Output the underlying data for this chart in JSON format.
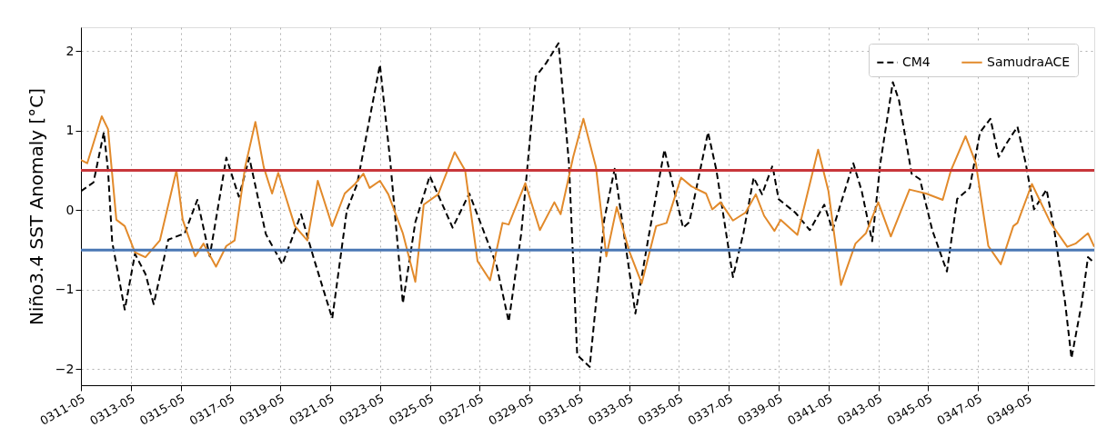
{
  "chart_data": {
    "type": "line",
    "ylabel": "Niño3.4 SST Anomaly [°C]",
    "xlim": [
      "0311-05",
      "0352-01"
    ],
    "ylim": [
      -2.2,
      2.3
    ],
    "xticks": [
      "0311-05",
      "0313-05",
      "0315-05",
      "0317-05",
      "0319-05",
      "0321-05",
      "0323-05",
      "0325-05",
      "0327-05",
      "0329-05",
      "0331-05",
      "0333-05",
      "0335-05",
      "0337-05",
      "0339-05",
      "0341-05",
      "0343-05",
      "0345-05",
      "0347-05",
      "0349-05"
    ],
    "yticks": [
      -2,
      -1,
      0,
      1,
      2
    ],
    "grid": true,
    "legend": "top right",
    "series": [
      {
        "name": "CM4",
        "color": "#000000",
        "line_style": "dashed",
        "x": [
          "0311-05",
          "0311-11",
          "0312-04",
          "0312-06",
          "0312-08",
          "0313-02",
          "0313-07",
          "0313-12",
          "0314-04",
          "0314-11",
          "0315-07",
          "0316-01",
          "0316-07",
          "0317-03",
          "0317-09",
          "0318-02",
          "0318-10",
          "0319-06",
          "0320-03",
          "0320-09",
          "0321-06",
          "0322-01",
          "0322-06",
          "0323-05",
          "0323-10",
          "0324-04",
          "0324-10",
          "0325-05",
          "0326-04",
          "0326-12",
          "0328-01",
          "0328-07",
          "0329-01",
          "0329-08",
          "0330-01",
          "0330-07",
          "0330-12",
          "0331-04",
          "0331-10",
          "0332-05",
          "0332-10",
          "0333-08",
          "0334-02",
          "0334-10",
          "0335-07",
          "0335-10",
          "0336-07",
          "0336-11",
          "0337-07",
          "0337-12",
          "0338-05",
          "0338-09",
          "0339-02",
          "0339-05",
          "0340-01",
          "0340-08",
          "0341-03",
          "0341-07",
          "0342-05",
          "0342-09",
          "0343-02",
          "0343-06",
          "0343-12",
          "0344-03",
          "0344-09",
          "0345-01",
          "0345-07",
          "0346-02",
          "0346-07",
          "0347-01",
          "0347-06",
          "0347-11",
          "0348-03",
          "0348-07",
          "0348-12",
          "0349-04",
          "0349-08",
          "0350-02",
          "0350-06",
          "0350-11",
          "0351-02",
          "0351-07",
          "0351-10",
          "0352-01"
        ],
        "values": [
          0.24,
          0.35,
          0.98,
          0.5,
          -0.4,
          -1.25,
          -0.55,
          -0.8,
          -1.18,
          -0.37,
          -0.29,
          0.13,
          -0.58,
          0.66,
          0.17,
          0.66,
          -0.3,
          -0.68,
          -0.05,
          -0.6,
          -1.36,
          0.0,
          0.33,
          1.83,
          0.6,
          -1.17,
          -0.15,
          0.43,
          -0.22,
          0.21,
          -0.68,
          -1.4,
          -0.29,
          1.68,
          1.85,
          2.1,
          0.59,
          -1.82,
          -1.97,
          -0.12,
          0.52,
          -1.3,
          -0.38,
          0.76,
          -0.22,
          -0.15,
          0.98,
          0.5,
          -0.84,
          -0.29,
          0.41,
          0.2,
          0.56,
          0.14,
          -0.03,
          -0.25,
          0.07,
          -0.25,
          0.59,
          0.24,
          -0.39,
          0.59,
          1.61,
          1.38,
          0.46,
          0.39,
          -0.25,
          -0.77,
          0.14,
          0.28,
          0.98,
          1.15,
          0.67,
          0.85,
          1.05,
          0.59,
          0.01,
          0.26,
          -0.29,
          -1.17,
          -1.86,
          -1.17,
          -0.59,
          -0.66
        ]
      },
      {
        "name": "SamudraACE",
        "color": "#e28a2b",
        "line_style": "solid",
        "x": [
          "0311-05",
          "0311-08",
          "0312-03",
          "0312-06",
          "0312-10",
          "0313-02",
          "0313-07",
          "0313-12",
          "0314-07",
          "0315-03",
          "0315-06",
          "0315-12",
          "0316-04",
          "0316-10",
          "0317-03",
          "0317-07",
          "0317-12",
          "0318-05",
          "0318-09",
          "0319-01",
          "0319-04",
          "0319-12",
          "0320-06",
          "0320-11",
          "0321-06",
          "0321-12",
          "0322-05",
          "0322-09",
          "0322-12",
          "0323-05",
          "0323-09",
          "0324-04",
          "0324-10",
          "0325-02",
          "0325-09",
          "0326-05",
          "0326-10",
          "0327-04",
          "0327-10",
          "0328-04",
          "0328-07",
          "0329-03",
          "0329-10",
          "0330-05",
          "0330-08",
          "0331-02",
          "0331-07",
          "0332-01",
          "0332-06",
          "0332-11",
          "0333-05",
          "0333-11",
          "0334-06",
          "0334-11",
          "0335-06",
          "0335-11",
          "0336-06",
          "0336-09",
          "0337-01",
          "0337-07",
          "0338-01",
          "0338-06",
          "0338-10",
          "0339-03",
          "0339-06",
          "0340-02",
          "0340-12",
          "0341-05",
          "0341-11",
          "0342-06",
          "0342-11",
          "0343-05",
          "0343-11",
          "0344-08",
          "0345-04",
          "0345-12",
          "0346-04",
          "0346-11",
          "0347-04",
          "0347-10",
          "0348-04",
          "0348-10",
          "0348-12",
          "0349-07",
          "0350-04",
          "0350-12",
          "0351-04",
          "0351-10",
          "0352-01"
        ],
        "values": [
          0.63,
          0.59,
          1.18,
          1.02,
          -0.12,
          -0.2,
          -0.53,
          -0.59,
          -0.38,
          0.5,
          -0.12,
          -0.58,
          -0.42,
          -0.71,
          -0.45,
          -0.38,
          0.54,
          1.11,
          0.54,
          0.21,
          0.47,
          -0.2,
          -0.38,
          0.37,
          -0.2,
          0.21,
          0.33,
          0.46,
          0.28,
          0.37,
          0.2,
          -0.29,
          -0.9,
          0.07,
          0.2,
          0.73,
          0.5,
          -0.64,
          -0.88,
          -0.16,
          -0.18,
          0.34,
          -0.25,
          0.1,
          -0.05,
          0.67,
          1.15,
          0.54,
          -0.58,
          0.04,
          -0.51,
          -0.92,
          -0.2,
          -0.16,
          0.41,
          0.3,
          0.21,
          0.01,
          0.1,
          -0.13,
          -0.03,
          0.2,
          -0.07,
          -0.26,
          -0.12,
          -0.31,
          0.76,
          0.24,
          -0.94,
          -0.42,
          -0.29,
          0.1,
          -0.33,
          0.26,
          0.21,
          0.13,
          0.5,
          0.93,
          0.59,
          -0.45,
          -0.68,
          -0.2,
          -0.16,
          0.33,
          -0.16,
          -0.46,
          -0.42,
          -0.29,
          -0.46
        ]
      }
    ],
    "ref_lines": [
      {
        "axis": "y",
        "value": 0.5,
        "color": "#c8363b"
      },
      {
        "axis": "y",
        "value": -0.5,
        "color": "#4a77b4"
      }
    ]
  }
}
